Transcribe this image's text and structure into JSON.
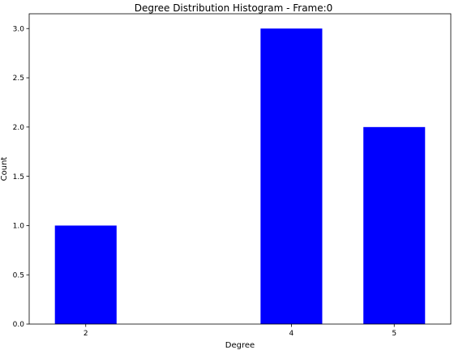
{
  "chart_data": {
    "type": "bar",
    "title": "Degree Distribution Histogram - Frame:0",
    "xlabel": "Degree",
    "ylabel": "Count",
    "categories": [
      "2",
      "4",
      "5"
    ],
    "x": [
      2,
      4,
      5
    ],
    "values": [
      1,
      3,
      2
    ],
    "bar_width": 0.6,
    "xlim": [
      1.45,
      5.55
    ],
    "ylim": [
      0,
      3.15
    ],
    "yticks": [
      0.0,
      0.5,
      1.0,
      1.5,
      2.0,
      2.5,
      3.0
    ],
    "ytick_labels": [
      "0.0",
      "0.5",
      "1.0",
      "1.5",
      "2.0",
      "2.5",
      "3.0"
    ],
    "bar_color": "#0000ff",
    "grid": false,
    "legend": "none"
  }
}
